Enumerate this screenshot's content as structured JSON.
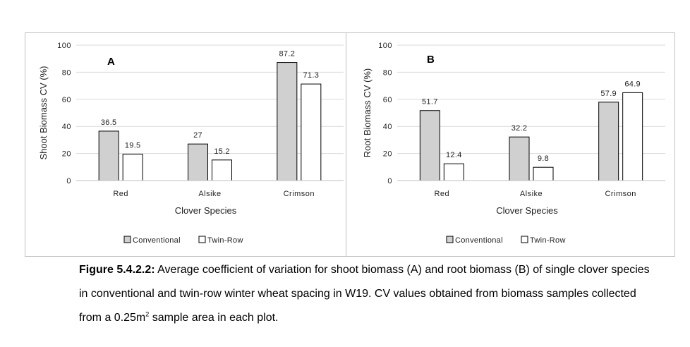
{
  "chart_data": [
    {
      "type": "bar",
      "panel_label": "A",
      "categories": [
        "Red",
        "Alsike",
        "Crimson"
      ],
      "series": [
        {
          "name": "Conventional",
          "values": [
            36.5,
            27,
            87.2
          ],
          "color": "#d0d0d0"
        },
        {
          "name": "Twin-Row",
          "values": [
            19.5,
            15.2,
            71.3
          ],
          "color": "#ffffff"
        }
      ],
      "data_labels": [
        [
          "36.5",
          "27",
          "87.2"
        ],
        [
          "19.5",
          "15.2",
          "71.3"
        ]
      ],
      "xlabel": "Clover Species",
      "ylabel": "Shoot Biomass CV (%)",
      "ylim": [
        0,
        100
      ],
      "yticks": [
        0,
        20,
        40,
        60,
        80,
        100
      ],
      "ytick_labels": [
        "0",
        "20",
        "40",
        "60",
        "80",
        "100"
      ],
      "grid": true,
      "legend": "bottom"
    },
    {
      "type": "bar",
      "panel_label": "B",
      "categories": [
        "Red",
        "Alsike",
        "Crimson"
      ],
      "series": [
        {
          "name": "Conventional",
          "values": [
            51.7,
            32.2,
            57.9
          ],
          "color": "#d0d0d0"
        },
        {
          "name": "Twin-Row",
          "values": [
            12.4,
            9.8,
            64.9
          ],
          "color": "#ffffff"
        }
      ],
      "data_labels": [
        [
          "51.7",
          "32.2",
          "57.9"
        ],
        [
          "12.4",
          "9.8",
          "64.9"
        ]
      ],
      "xlabel": "Clover Species",
      "ylabel": "Root Biomass CV (%)",
      "ylim": [
        0,
        100
      ],
      "yticks": [
        0,
        20,
        40,
        60,
        80,
        100
      ],
      "ytick_labels": [
        "0",
        "20",
        "40",
        "60",
        "80",
        "100"
      ],
      "grid": true,
      "legend": "bottom"
    }
  ],
  "caption": {
    "label": "Figure 5.4.2.2:",
    "text_before_sup": " Average coefficient of variation for shoot biomass (A) and root biomass (B) of single clover species in conventional and twin-row winter wheat spacing in W19. CV values obtained from biomass samples collected from a 0.25m",
    "sup": "2",
    "text_after_sup": " sample area in each plot."
  }
}
